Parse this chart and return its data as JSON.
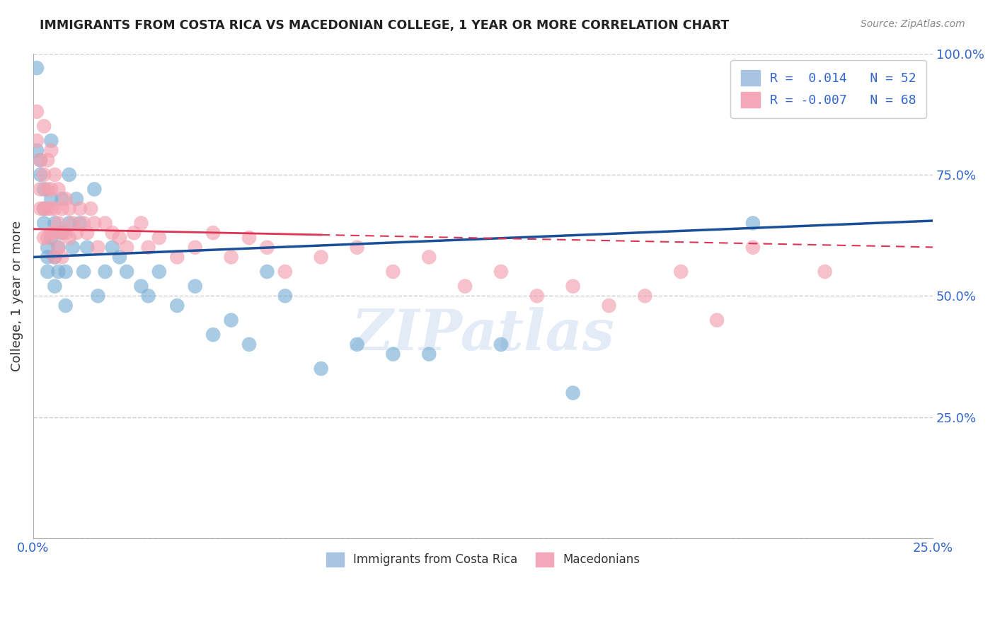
{
  "title": "IMMIGRANTS FROM COSTA RICA VS MACEDONIAN COLLEGE, 1 YEAR OR MORE CORRELATION CHART",
  "source": "Source: ZipAtlas.com",
  "ylabel": "College, 1 year or more",
  "xlim": [
    0.0,
    0.25
  ],
  "ylim": [
    0.0,
    1.0
  ],
  "xticks": [
    0.0,
    0.05,
    0.1,
    0.15,
    0.2,
    0.25
  ],
  "yticks": [
    0.0,
    0.25,
    0.5,
    0.75,
    1.0
  ],
  "legend_entries": [
    {
      "label": "R =  0.014   N = 52",
      "color": "#a8c4e0"
    },
    {
      "label": "R = -0.007   N = 68",
      "color": "#f4a7b9"
    }
  ],
  "legend_labels_bottom": [
    "Immigrants from Costa Rica",
    "Macedonians"
  ],
  "blue_scatter_x": [
    0.001,
    0.001,
    0.002,
    0.002,
    0.003,
    0.003,
    0.003,
    0.004,
    0.004,
    0.004,
    0.005,
    0.005,
    0.005,
    0.006,
    0.006,
    0.006,
    0.007,
    0.007,
    0.008,
    0.008,
    0.009,
    0.009,
    0.01,
    0.01,
    0.011,
    0.012,
    0.013,
    0.014,
    0.015,
    0.017,
    0.018,
    0.02,
    0.022,
    0.024,
    0.026,
    0.03,
    0.032,
    0.035,
    0.04,
    0.045,
    0.05,
    0.055,
    0.06,
    0.065,
    0.07,
    0.08,
    0.09,
    0.1,
    0.11,
    0.13,
    0.15,
    0.2
  ],
  "blue_scatter_y": [
    0.97,
    0.8,
    0.78,
    0.75,
    0.72,
    0.68,
    0.65,
    0.6,
    0.58,
    0.55,
    0.82,
    0.7,
    0.62,
    0.65,
    0.58,
    0.52,
    0.6,
    0.55,
    0.7,
    0.63,
    0.55,
    0.48,
    0.75,
    0.65,
    0.6,
    0.7,
    0.65,
    0.55,
    0.6,
    0.72,
    0.5,
    0.55,
    0.6,
    0.58,
    0.55,
    0.52,
    0.5,
    0.55,
    0.48,
    0.52,
    0.42,
    0.45,
    0.4,
    0.55,
    0.5,
    0.35,
    0.4,
    0.38,
    0.38,
    0.4,
    0.3,
    0.65
  ],
  "pink_scatter_x": [
    0.001,
    0.001,
    0.002,
    0.002,
    0.002,
    0.003,
    0.003,
    0.003,
    0.003,
    0.004,
    0.004,
    0.004,
    0.004,
    0.005,
    0.005,
    0.005,
    0.005,
    0.006,
    0.006,
    0.006,
    0.006,
    0.007,
    0.007,
    0.007,
    0.008,
    0.008,
    0.008,
    0.009,
    0.009,
    0.01,
    0.01,
    0.011,
    0.012,
    0.013,
    0.014,
    0.015,
    0.016,
    0.017,
    0.018,
    0.02,
    0.022,
    0.024,
    0.026,
    0.028,
    0.03,
    0.032,
    0.035,
    0.04,
    0.045,
    0.05,
    0.055,
    0.06,
    0.065,
    0.07,
    0.08,
    0.09,
    0.1,
    0.11,
    0.12,
    0.13,
    0.14,
    0.15,
    0.16,
    0.17,
    0.18,
    0.19,
    0.2,
    0.22
  ],
  "pink_scatter_y": [
    0.88,
    0.82,
    0.78,
    0.72,
    0.68,
    0.85,
    0.75,
    0.68,
    0.62,
    0.78,
    0.72,
    0.68,
    0.62,
    0.8,
    0.72,
    0.68,
    0.63,
    0.75,
    0.68,
    0.63,
    0.58,
    0.72,
    0.65,
    0.6,
    0.68,
    0.63,
    0.58,
    0.7,
    0.63,
    0.68,
    0.62,
    0.65,
    0.63,
    0.68,
    0.65,
    0.63,
    0.68,
    0.65,
    0.6,
    0.65,
    0.63,
    0.62,
    0.6,
    0.63,
    0.65,
    0.6,
    0.62,
    0.58,
    0.6,
    0.63,
    0.58,
    0.62,
    0.6,
    0.55,
    0.58,
    0.6,
    0.55,
    0.58,
    0.52,
    0.55,
    0.5,
    0.52,
    0.48,
    0.5,
    0.55,
    0.45,
    0.6,
    0.55
  ],
  "blue_color": "#7bafd4",
  "pink_color": "#f4a0b0",
  "blue_line_color": "#1a4f99",
  "pink_line_color": "#dd3355",
  "watermark": "ZIPatlas",
  "background_color": "#ffffff",
  "grid_color": "#cccccc",
  "blue_line_intercept": 0.58,
  "blue_line_slope": 0.3,
  "pink_line_intercept": 0.638,
  "pink_line_slope": -0.15
}
